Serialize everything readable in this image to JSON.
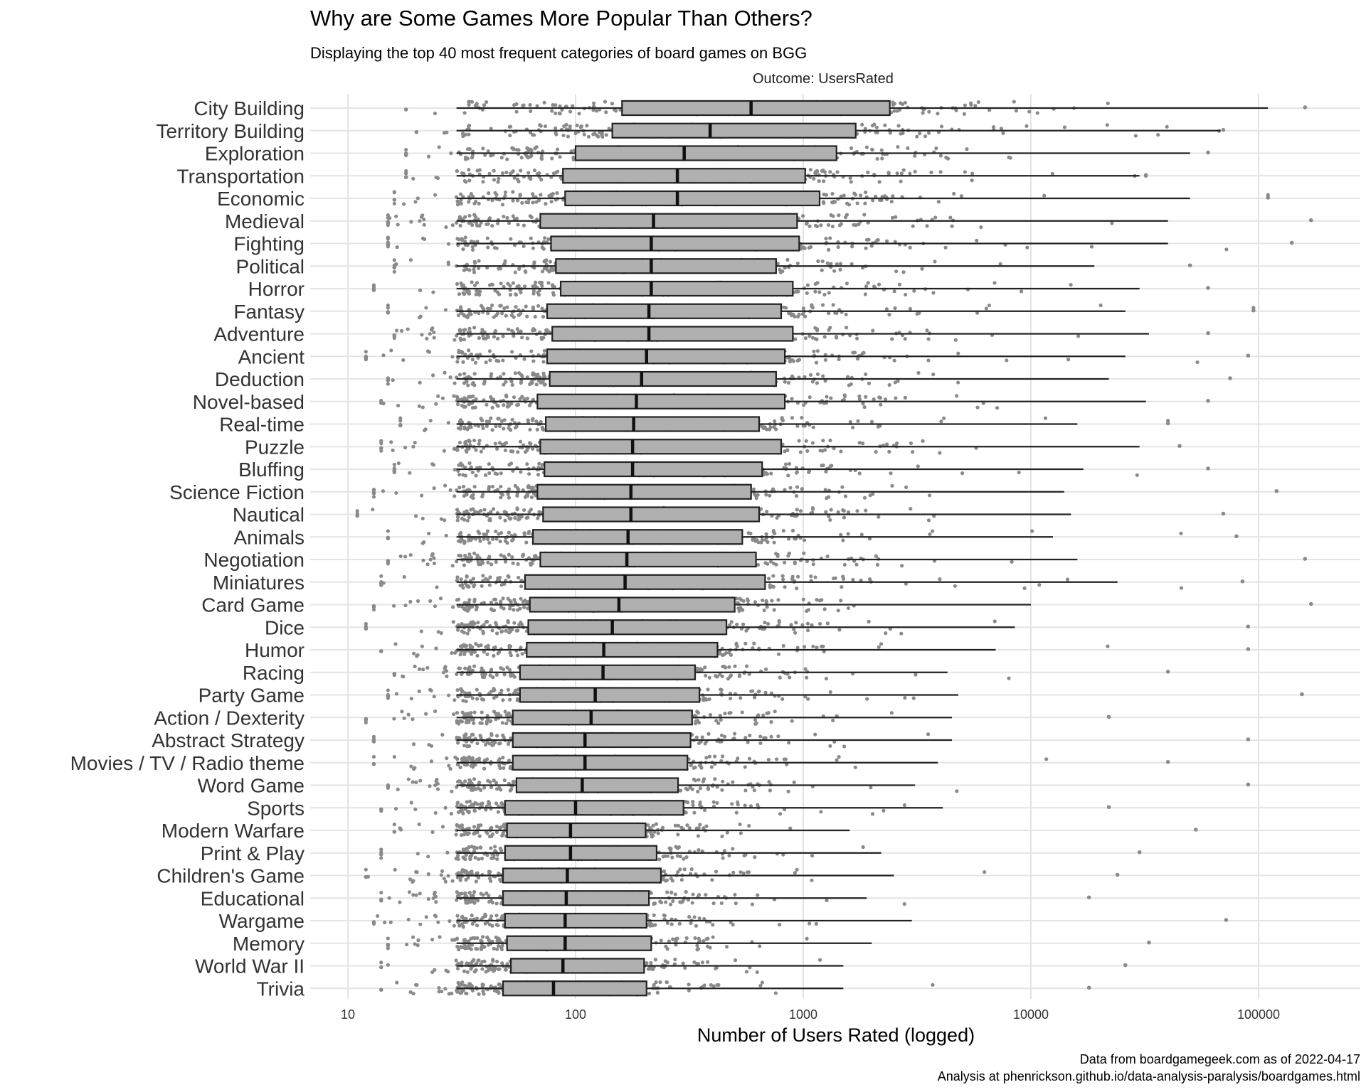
{
  "chart_data": {
    "type": "boxplot",
    "title": "Why are Some Games More Popular Than Others?",
    "subtitle": "Displaying the top 40 most frequent categories of board games on BGG",
    "outcome_label": "Outcome: UsersRated",
    "xlabel": "Number of Users Rated (logged)",
    "ylabel": "",
    "x_scale": "log10",
    "xlim": [
      7,
      200000
    ],
    "x_ticks": [
      10,
      100,
      1000,
      10000,
      100000
    ],
    "x_tick_labels": [
      "10",
      "100",
      "1000",
      "10000",
      "100000"
    ],
    "grid": true,
    "caption_lines": [
      "Data from boardgamegeek.com as of 2022-04-17",
      "Analysis at phenrickson.github.io/data-analysis-paralysis/boardgames.html"
    ],
    "categories": [
      {
        "name": "City Building",
        "lower": 30,
        "q1": 160,
        "median": 590,
        "q3": 2400,
        "upper": 110000,
        "min_point": 18,
        "max_point": 160000
      },
      {
        "name": "Territory Building",
        "lower": 30,
        "q1": 145,
        "median": 390,
        "q3": 1700,
        "upper": 68000,
        "min_point": 20,
        "max_point": 70000
      },
      {
        "name": "Exploration",
        "lower": 30,
        "q1": 100,
        "median": 300,
        "q3": 1400,
        "upper": 50000,
        "min_point": 18,
        "max_point": 60000
      },
      {
        "name": "Transportation",
        "lower": 30,
        "q1": 88,
        "median": 280,
        "q3": 1020,
        "upper": 30000,
        "min_point": 18,
        "max_point": 32000
      },
      {
        "name": "Economic",
        "lower": 30,
        "q1": 90,
        "median": 280,
        "q3": 1180,
        "upper": 50000,
        "min_point": 16,
        "max_point": 110000
      },
      {
        "name": "Medieval",
        "lower": 30,
        "q1": 70,
        "median": 220,
        "q3": 940,
        "upper": 40000,
        "min_point": 15,
        "max_point": 170000
      },
      {
        "name": "Fighting",
        "lower": 30,
        "q1": 78,
        "median": 215,
        "q3": 960,
        "upper": 40000,
        "min_point": 15,
        "max_point": 140000
      },
      {
        "name": "Political",
        "lower": 30,
        "q1": 82,
        "median": 215,
        "q3": 760,
        "upper": 19000,
        "min_point": 16,
        "max_point": 50000
      },
      {
        "name": "Horror",
        "lower": 30,
        "q1": 86,
        "median": 215,
        "q3": 900,
        "upper": 30000,
        "min_point": 13,
        "max_point": 60000
      },
      {
        "name": "Fantasy",
        "lower": 30,
        "q1": 75,
        "median": 210,
        "q3": 800,
        "upper": 26000,
        "min_point": 15,
        "max_point": 95000
      },
      {
        "name": "Adventure",
        "lower": 30,
        "q1": 79,
        "median": 210,
        "q3": 900,
        "upper": 33000,
        "min_point": 16,
        "max_point": 60000
      },
      {
        "name": "Ancient",
        "lower": 30,
        "q1": 75,
        "median": 205,
        "q3": 830,
        "upper": 26000,
        "min_point": 12,
        "max_point": 90000
      },
      {
        "name": "Deduction",
        "lower": 30,
        "q1": 77,
        "median": 195,
        "q3": 760,
        "upper": 22000,
        "min_point": 15,
        "max_point": 75000
      },
      {
        "name": "Novel-based",
        "lower": 30,
        "q1": 68,
        "median": 185,
        "q3": 830,
        "upper": 32000,
        "min_point": 14,
        "max_point": 60000
      },
      {
        "name": "Real-time",
        "lower": 30,
        "q1": 74,
        "median": 180,
        "q3": 640,
        "upper": 16000,
        "min_point": 17,
        "max_point": 40000
      },
      {
        "name": "Puzzle",
        "lower": 30,
        "q1": 70,
        "median": 178,
        "q3": 800,
        "upper": 30000,
        "min_point": 14,
        "max_point": 45000
      },
      {
        "name": "Bluffing",
        "lower": 30,
        "q1": 73,
        "median": 178,
        "q3": 660,
        "upper": 17000,
        "min_point": 16,
        "max_point": 60000
      },
      {
        "name": "Science Fiction",
        "lower": 30,
        "q1": 68,
        "median": 175,
        "q3": 590,
        "upper": 14000,
        "min_point": 13,
        "max_point": 120000
      },
      {
        "name": "Nautical",
        "lower": 30,
        "q1": 72,
        "median": 175,
        "q3": 640,
        "upper": 15000,
        "min_point": 11,
        "max_point": 70000
      },
      {
        "name": "Animals",
        "lower": 30,
        "q1": 65,
        "median": 170,
        "q3": 540,
        "upper": 12500,
        "min_point": 15,
        "max_point": 80000
      },
      {
        "name": "Negotiation",
        "lower": 30,
        "q1": 70,
        "median": 168,
        "q3": 620,
        "upper": 16000,
        "min_point": 15,
        "max_point": 160000
      },
      {
        "name": "Miniatures",
        "lower": 30,
        "q1": 60,
        "median": 165,
        "q3": 680,
        "upper": 24000,
        "min_point": 14,
        "max_point": 85000
      },
      {
        "name": "Card Game",
        "lower": 30,
        "q1": 63,
        "median": 155,
        "q3": 500,
        "upper": 10000,
        "min_point": 13,
        "max_point": 170000
      },
      {
        "name": "Dice",
        "lower": 30,
        "q1": 62,
        "median": 145,
        "q3": 460,
        "upper": 8500,
        "min_point": 12,
        "max_point": 90000
      },
      {
        "name": "Humor",
        "lower": 30,
        "q1": 61,
        "median": 133,
        "q3": 420,
        "upper": 7000,
        "min_point": 14,
        "max_point": 90000
      },
      {
        "name": "Racing",
        "lower": 30,
        "q1": 57,
        "median": 132,
        "q3": 335,
        "upper": 4300,
        "min_point": 16,
        "max_point": 40000
      },
      {
        "name": "Party Game",
        "lower": 30,
        "q1": 57,
        "median": 122,
        "q3": 350,
        "upper": 4800,
        "min_point": 15,
        "max_point": 155000
      },
      {
        "name": "Action / Dexterity",
        "lower": 30,
        "q1": 53,
        "median": 117,
        "q3": 325,
        "upper": 4500,
        "min_point": 12,
        "max_point": 22000
      },
      {
        "name": "Abstract Strategy",
        "lower": 30,
        "q1": 53,
        "median": 110,
        "q3": 320,
        "upper": 4500,
        "min_point": 13,
        "max_point": 90000
      },
      {
        "name": "Movies / TV / Radio theme",
        "lower": 30,
        "q1": 53,
        "median": 110,
        "q3": 310,
        "upper": 3900,
        "min_point": 13,
        "max_point": 40000
      },
      {
        "name": "Word Game",
        "lower": 30,
        "q1": 55,
        "median": 107,
        "q3": 282,
        "upper": 3100,
        "min_point": 15,
        "max_point": 90000
      },
      {
        "name": "Sports",
        "lower": 30,
        "q1": 49,
        "median": 100,
        "q3": 298,
        "upper": 4100,
        "min_point": 14,
        "max_point": 22000
      },
      {
        "name": "Modern Warfare",
        "lower": 30,
        "q1": 50,
        "median": 95,
        "q3": 203,
        "upper": 1600,
        "min_point": 16,
        "max_point": 53000
      },
      {
        "name": "Print & Play",
        "lower": 30,
        "q1": 49,
        "median": 95,
        "q3": 227,
        "upper": 2200,
        "min_point": 14,
        "max_point": 30000
      },
      {
        "name": "Children's Game",
        "lower": 30,
        "q1": 48,
        "median": 92,
        "q3": 237,
        "upper": 2500,
        "min_point": 12,
        "max_point": 24000
      },
      {
        "name": "Educational",
        "lower": 30,
        "q1": 48,
        "median": 91,
        "q3": 210,
        "upper": 1900,
        "min_point": 14,
        "max_point": 18000
      },
      {
        "name": "Wargame",
        "lower": 30,
        "q1": 49,
        "median": 90,
        "q3": 205,
        "upper": 3000,
        "min_point": 13,
        "max_point": 72000
      },
      {
        "name": "Memory",
        "lower": 30,
        "q1": 50,
        "median": 90,
        "q3": 215,
        "upper": 2000,
        "min_point": 15,
        "max_point": 33000
      },
      {
        "name": "World War II",
        "lower": 30,
        "q1": 52,
        "median": 88,
        "q3": 200,
        "upper": 1500,
        "min_point": 14,
        "max_point": 26000
      },
      {
        "name": "Trivia",
        "lower": 30,
        "q1": 48,
        "median": 80,
        "q3": 205,
        "upper": 1500,
        "min_point": 14,
        "max_point": 18000
      }
    ]
  }
}
